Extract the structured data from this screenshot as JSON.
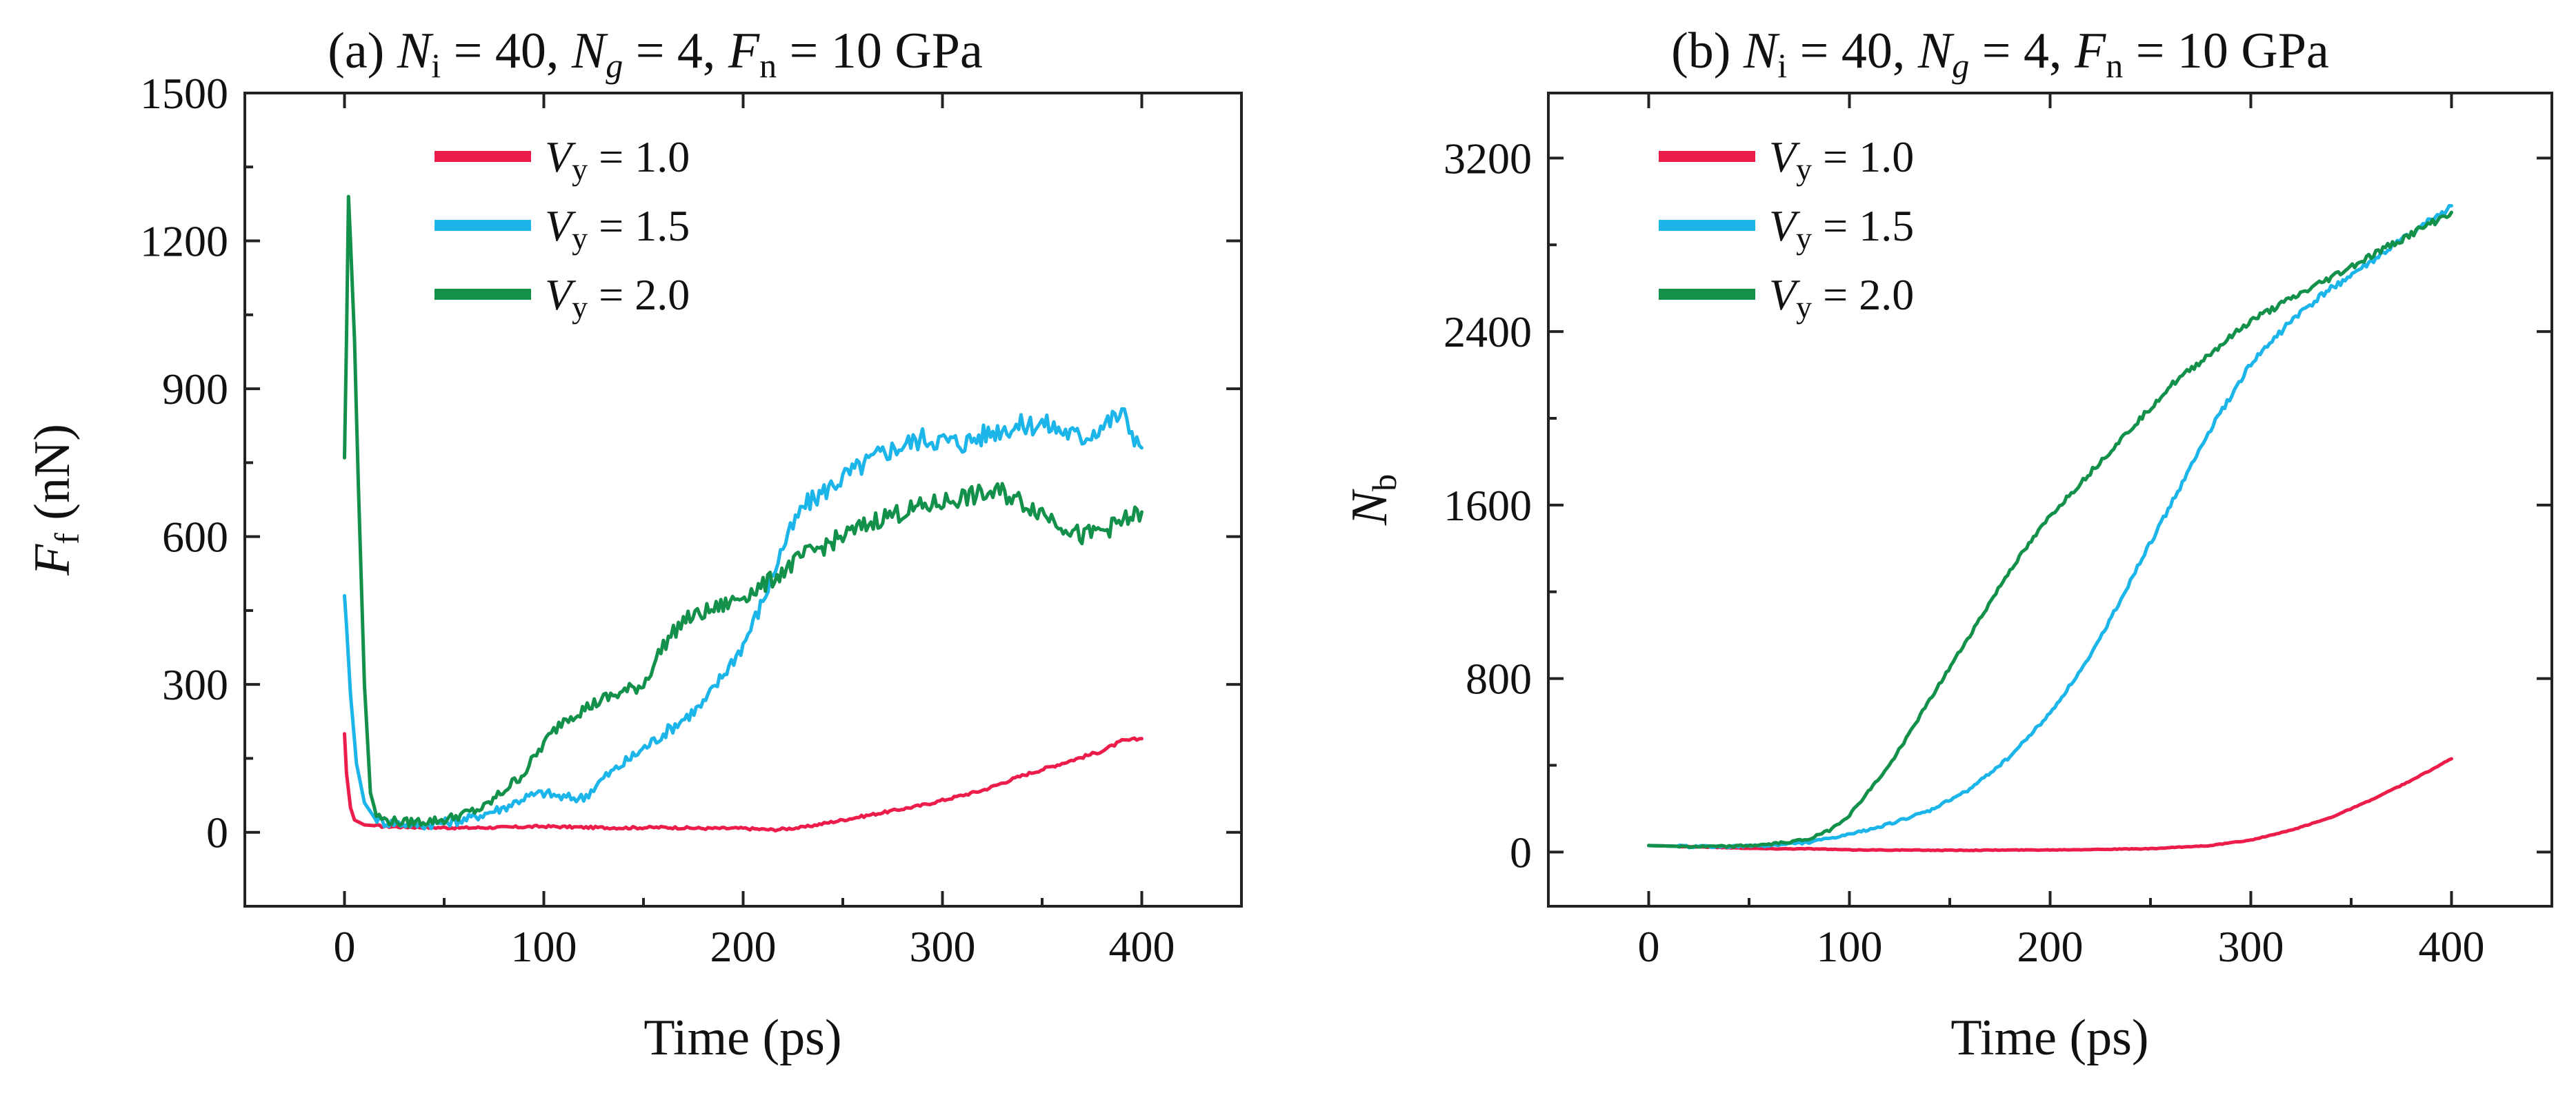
{
  "colors": {
    "red": "#EC1C4B",
    "cyan": "#1CB5EA",
    "green": "#13914B"
  },
  "chart_data": [
    {
      "type": "line",
      "title": "(a)  Ni = 40, Ng = 4, Fn = 10 GPa",
      "title_parts": {
        "label": "(a)",
        "ni": "N",
        "ni_sub": "i",
        "ni_val": " = 40, ",
        "ng": "N",
        "ng_sub": "g",
        "ng_val": " = 4, ",
        "fn": "F",
        "fn_sub": "n",
        "fn_val": " = 10 GPa"
      },
      "xlabel": "Time (ps)",
      "ylabel": "Ff (nN)",
      "ylabel_parts": {
        "sym": "F",
        "sub": "f",
        "unit": " (nN)"
      },
      "xlim": [
        -50,
        450
      ],
      "ylim": [
        -150,
        1500
      ],
      "xticks": [
        0,
        100,
        200,
        300,
        400
      ],
      "yticks": [
        0,
        300,
        600,
        900,
        1200,
        1500
      ],
      "legend_position": "top-left",
      "series": [
        {
          "name": "Vy = 1.0",
          "sym": "V",
          "sub": "y",
          "val": " = 1.0",
          "color": "#EC1C4B",
          "x": [
            0,
            1,
            3,
            5,
            10,
            20,
            40,
            60,
            80,
            100,
            120,
            140,
            160,
            180,
            200,
            215,
            230,
            250,
            270,
            290,
            300,
            320,
            340,
            360,
            380,
            390,
            400
          ],
          "y": [
            200,
            120,
            50,
            25,
            15,
            12,
            10,
            9,
            10,
            12,
            10,
            9,
            10,
            8,
            8,
            5,
            10,
            25,
            40,
            55,
            65,
            85,
            115,
            140,
            165,
            185,
            190
          ]
        },
        {
          "name": "Vy = 1.5",
          "sym": "V",
          "sub": "y",
          "val": " = 1.5",
          "color": "#1CB5EA",
          "x": [
            0,
            1,
            3,
            6,
            10,
            15,
            20,
            40,
            60,
            80,
            90,
            100,
            110,
            120,
            130,
            140,
            160,
            180,
            200,
            210,
            220,
            230,
            250,
            270,
            290,
            310,
            330,
            350,
            370,
            390,
            400
          ],
          "y": [
            480,
            420,
            280,
            140,
            60,
            30,
            20,
            15,
            25,
            50,
            70,
            80,
            70,
            70,
            110,
            140,
            200,
            260,
            380,
            470,
            580,
            660,
            720,
            770,
            800,
            790,
            820,
            830,
            800,
            850,
            780
          ]
        },
        {
          "name": "Vy = 2.0",
          "sym": "V",
          "sub": "y",
          "val": " = 2.0",
          "color": "#13914B",
          "x": [
            0,
            1,
            2,
            3,
            5,
            7,
            10,
            13,
            16,
            20,
            30,
            50,
            70,
            90,
            100,
            110,
            130,
            150,
            160,
            170,
            190,
            210,
            230,
            250,
            270,
            290,
            310,
            330,
            350,
            370,
            385,
            400
          ],
          "y": [
            760,
            1000,
            1290,
            1200,
            1000,
            700,
            300,
            80,
            35,
            25,
            20,
            25,
            50,
            120,
            180,
            230,
            270,
            300,
            380,
            430,
            460,
            500,
            560,
            600,
            640,
            660,
            680,
            690,
            650,
            600,
            620,
            650
          ]
        }
      ]
    },
    {
      "type": "line",
      "title": "(b)  Ni = 40, Ng = 4, Fn = 10 GPa",
      "title_parts": {
        "label": "(b)",
        "ni": "N",
        "ni_sub": "i",
        "ni_val": " = 40, ",
        "ng": "N",
        "ng_sub": "g",
        "ng_val": " = 4, ",
        "fn": "F",
        "fn_sub": "n",
        "fn_val": " = 10 GPa"
      },
      "xlabel": "Time (ps)",
      "ylabel": "Nb",
      "ylabel_parts": {
        "sym": "N",
        "sub": "b",
        "unit": ""
      },
      "xlim": [
        -50,
        450
      ],
      "ylim": [
        -250,
        3500
      ],
      "xticks": [
        0,
        100,
        200,
        300,
        400
      ],
      "yticks": [
        0,
        800,
        1600,
        2400,
        3200
      ],
      "legend_position": "top-left",
      "series": [
        {
          "name": "Vy = 1.0",
          "sym": "V",
          "sub": "y",
          "val": " = 1.0",
          "color": "#EC1C4B",
          "x": [
            0,
            20,
            40,
            60,
            80,
            100,
            150,
            200,
            250,
            280,
            300,
            320,
            340,
            360,
            380,
            400
          ],
          "y": [
            30,
            25,
            20,
            15,
            15,
            10,
            8,
            10,
            15,
            30,
            55,
            100,
            160,
            240,
            330,
            430
          ]
        },
        {
          "name": "Vy = 1.5",
          "sym": "V",
          "sub": "y",
          "val": " = 1.5",
          "color": "#1CB5EA",
          "x": [
            0,
            20,
            40,
            60,
            80,
            100,
            120,
            140,
            160,
            180,
            200,
            220,
            240,
            260,
            280,
            300,
            320,
            340,
            360,
            380,
            400
          ],
          "y": [
            30,
            25,
            25,
            30,
            45,
            80,
            130,
            190,
            290,
            440,
            640,
            900,
            1250,
            1600,
            1950,
            2250,
            2450,
            2600,
            2720,
            2850,
            2980
          ]
        },
        {
          "name": "Vy = 2.0",
          "sym": "V",
          "sub": "y",
          "val": " = 2.0",
          "color": "#13914B",
          "x": [
            0,
            20,
            40,
            60,
            80,
            90,
            100,
            120,
            140,
            160,
            180,
            200,
            220,
            240,
            260,
            280,
            300,
            320,
            340,
            360,
            380,
            400
          ],
          "y": [
            30,
            25,
            25,
            35,
            60,
            100,
            170,
            400,
            700,
            1000,
            1300,
            1550,
            1750,
            1950,
            2150,
            2300,
            2450,
            2550,
            2650,
            2750,
            2850,
            2950
          ]
        }
      ]
    }
  ]
}
